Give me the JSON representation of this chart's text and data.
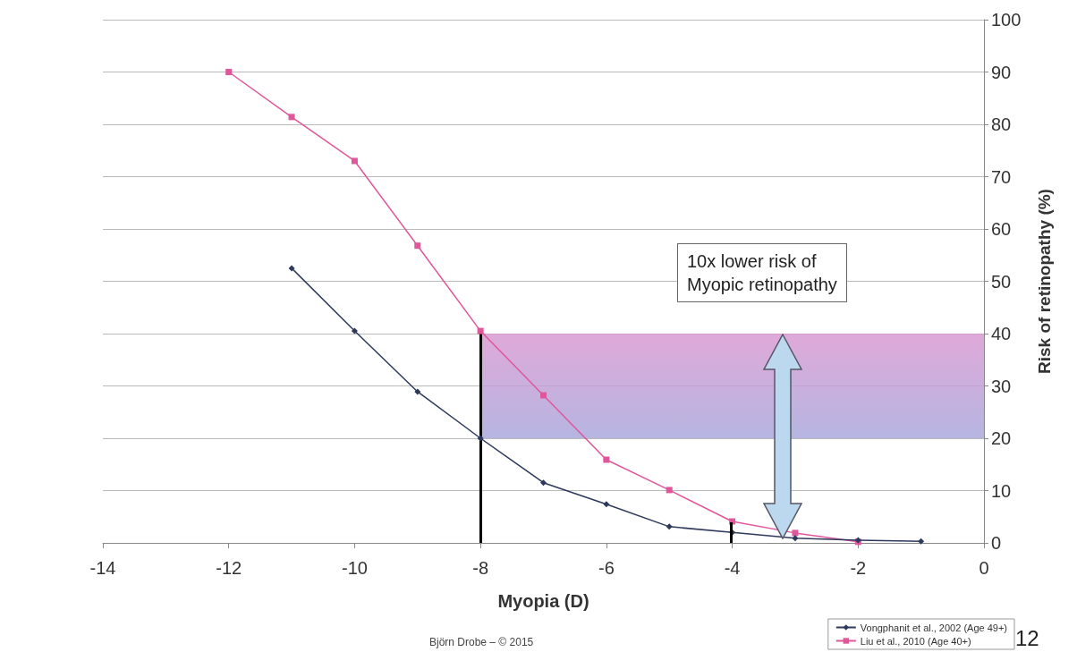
{
  "chart_data": {
    "type": "line",
    "xlabel": "Myopia (D)",
    "ylabel": "Risk of retinopathy (%)",
    "series": [
      {
        "name": "Vongphanit et al., 2002 (Age 49+)",
        "color": "#2e3a5c",
        "marker": "diamond",
        "x": [
          -11,
          -10,
          -9,
          -8,
          -7,
          -6,
          -5,
          -4,
          -3,
          -2,
          -1
        ],
        "values": [
          52.5,
          40.5,
          28.9,
          20,
          11.5,
          7.4,
          3.1,
          2,
          0.9,
          0.5,
          0.3
        ]
      },
      {
        "name": "Liu et al., 2010 (Age 40+)",
        "color": "#e0569a",
        "marker": "square",
        "x": [
          -12,
          -11,
          -10,
          -9,
          -8,
          -7,
          -6,
          -5,
          -4,
          -3,
          -2
        ],
        "values": [
          90,
          81.4,
          73,
          56.8,
          40.5,
          28.2,
          15.9,
          10.1,
          4.1,
          1.9,
          0.2
        ]
      }
    ],
    "xlim": [
      -14,
      0
    ],
    "xticks": [
      -14,
      -12,
      -10,
      -8,
      -6,
      -4,
      -2,
      0
    ],
    "ylim": [
      0,
      100
    ],
    "yticks": [
      0,
      10,
      20,
      30,
      40,
      50,
      60,
      70,
      80,
      90,
      100
    ],
    "grid": "y",
    "legend": "bottom right",
    "ref_lines": [
      {
        "axis": "x",
        "value": -8,
        "color": "#000000"
      }
    ],
    "bands": [
      {
        "axis": "y",
        "from": 20,
        "to": 40,
        "color": "#d99ad2"
      }
    ],
    "annotations": [
      "10x lower risk of\nMyopic retinopathy",
      "Björn Drobe – © 2015",
      "12"
    ]
  }
}
